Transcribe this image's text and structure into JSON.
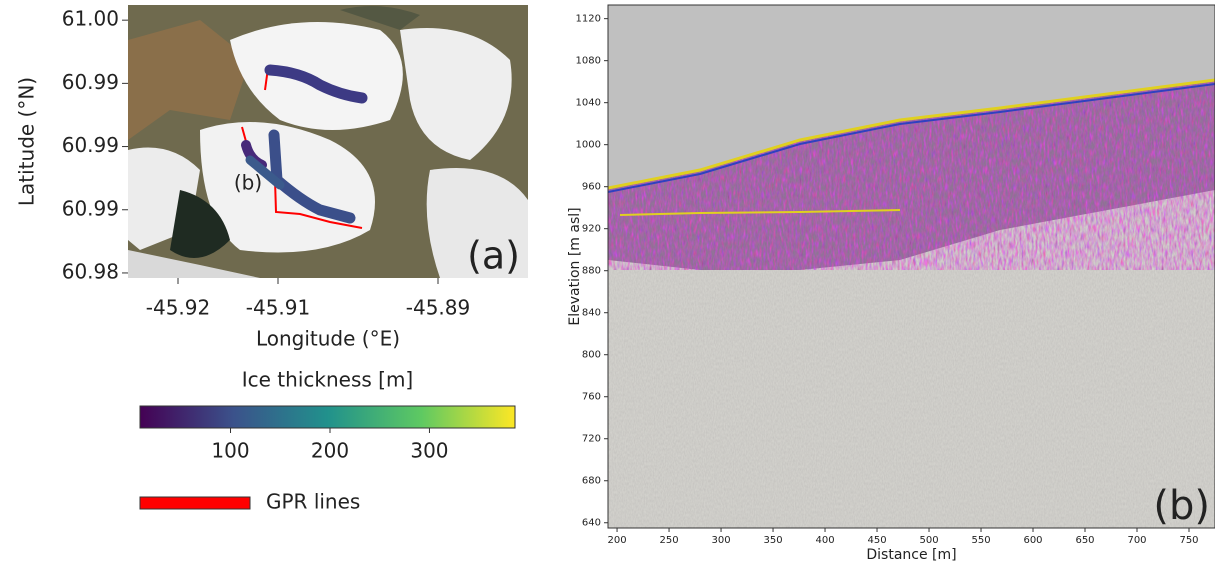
{
  "chart_data": [
    {
      "type": "map",
      "panel_label": "(a)",
      "xlabel": "Longitude (°E)",
      "ylabel": "Latitude (°N)",
      "xlim": [
        -45.925,
        -45.885
      ],
      "xticks": [
        -45.92,
        -45.91,
        {
          "value": -45.894,
          "label": "-45.89"
        }
      ],
      "ylim": [
        60.9796,
        61.0012
      ],
      "yticks": [
        {
          "value": 61.0,
          "label": "61.00"
        },
        {
          "value": 60.995,
          "label": "60.99"
        },
        {
          "value": 60.99,
          "label": "60.99"
        },
        {
          "value": 60.985,
          "label": "60.99"
        },
        {
          "value": 60.98,
          "label": "60.98"
        }
      ],
      "track_label": "(b)",
      "colorbar": {
        "label": "Ice thickness [m]",
        "lim": [
          9,
          386
        ],
        "ticks": [
          100,
          200,
          300
        ]
      },
      "legend": [
        {
          "name": "GPR lines",
          "color": "#ff0000"
        }
      ]
    },
    {
      "type": "radargram",
      "panel_label": "(b)",
      "xlabel": "Distance [m]",
      "ylabel": "Elevation [m asl]",
      "xlim": [
        191.3,
        775
      ],
      "xticks": [
        200,
        250,
        300,
        350,
        400,
        450,
        500,
        550,
        600,
        650,
        700,
        750
      ],
      "ylim": [
        635,
        1133
      ],
      "yticks": [
        640,
        680,
        720,
        760,
        800,
        840,
        880,
        920,
        960,
        1000,
        1040,
        1080,
        1120
      ]
    }
  ]
}
